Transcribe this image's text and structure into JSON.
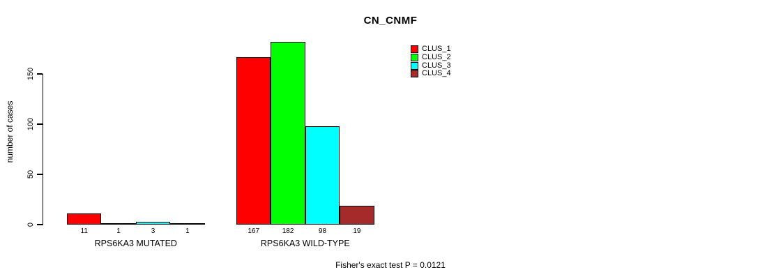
{
  "page": {
    "background_color": "#ffffff",
    "text_color": "#000000"
  },
  "chart_data": {
    "type": "bar",
    "title": "CN_CNMF",
    "xlabel": "",
    "ylabel": "number of cases",
    "ylim": [
      0,
      150
    ],
    "yticks": [
      0,
      50,
      100,
      150
    ],
    "grid": false,
    "legend_position": "top-right",
    "categories": [
      "RPS6KA3 MUTATED",
      "RPS6KA3 WILD-TYPE"
    ],
    "series": [
      {
        "name": "CLUS_1",
        "color": "#ff0000",
        "values": [
          11,
          167
        ]
      },
      {
        "name": "CLUS_2",
        "color": "#00ff00",
        "values": [
          1,
          182
        ]
      },
      {
        "name": "CLUS_3",
        "color": "#00ffff",
        "values": [
          3,
          98
        ]
      },
      {
        "name": "CLUS_4",
        "color": "#a52a2a",
        "values": [
          1,
          19
        ]
      }
    ],
    "bar_labels": [
      [
        "11",
        "1",
        "3",
        "1"
      ],
      [
        "167",
        "182",
        "98",
        "19"
      ]
    ],
    "bar_border_color": "#000000",
    "annotation": "Fisher's exact test P = 0.0121"
  }
}
